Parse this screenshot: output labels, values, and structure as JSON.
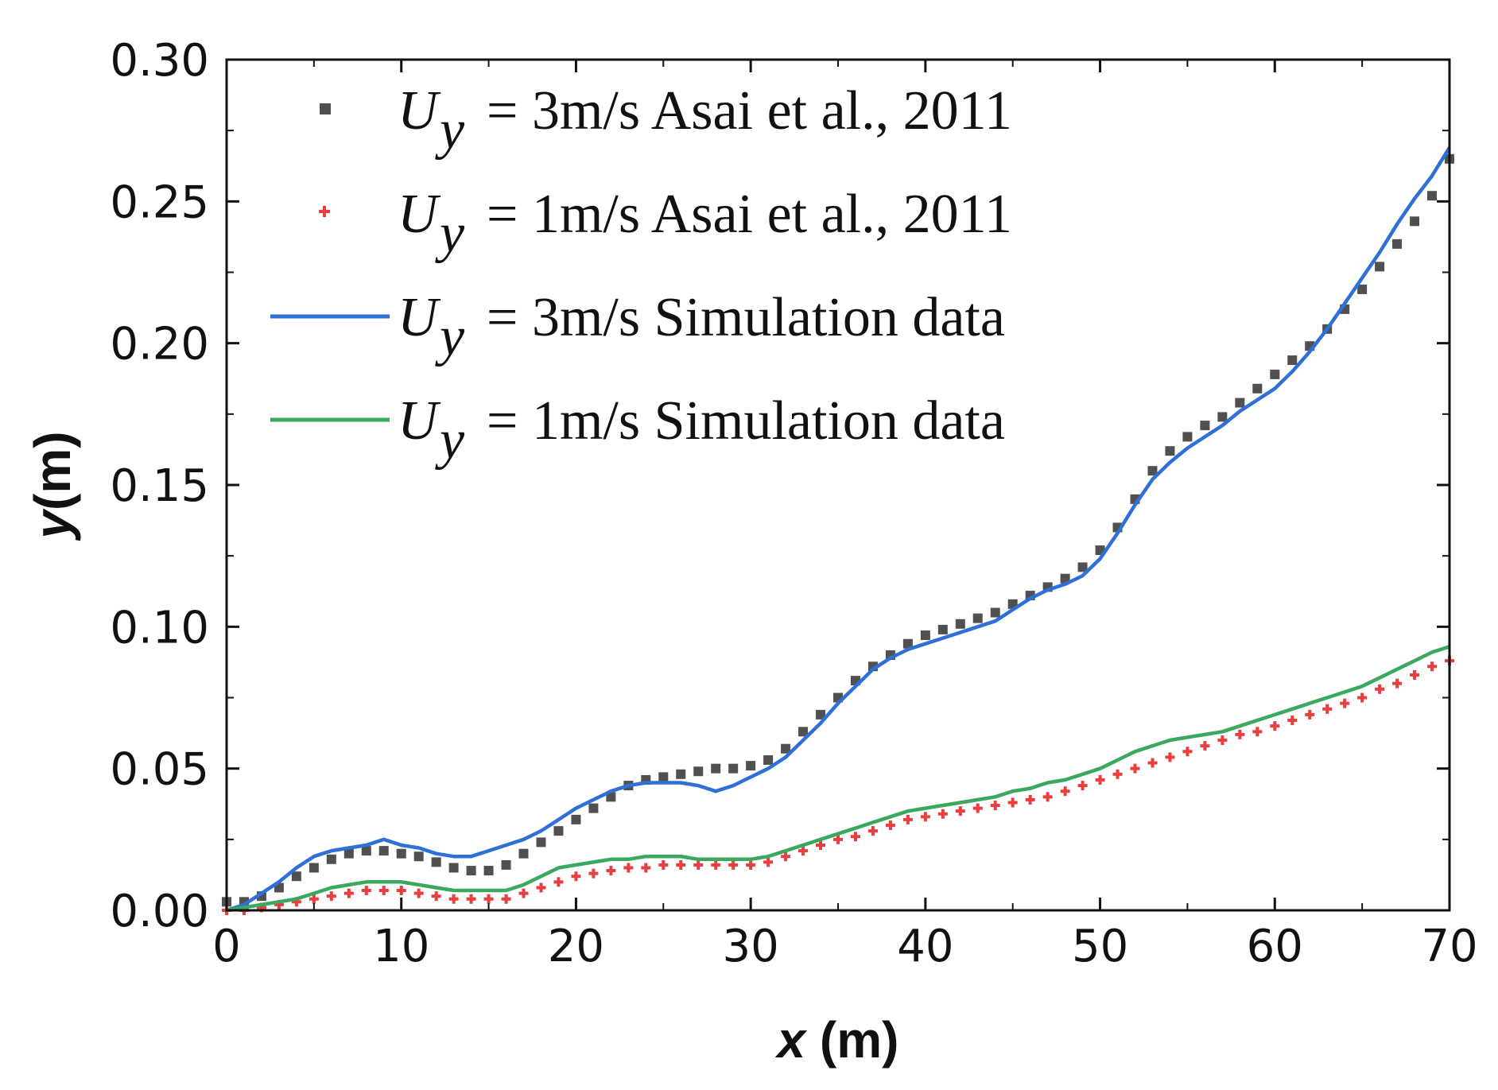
{
  "chart_data": {
    "type": "scatter",
    "title": "",
    "xlabel": "x (m)",
    "xlabel_var": "x",
    "xlabel_unit": " (m)",
    "ylabel": "y (m)",
    "ylabel_var": "y",
    "ylabel_unit": "(m)",
    "xlim": [
      0,
      70
    ],
    "ylim": [
      0,
      0.3
    ],
    "xticks": [
      0,
      10,
      20,
      30,
      40,
      50,
      60,
      70
    ],
    "xtick_labels": [
      "0",
      "10",
      "20",
      "30",
      "40",
      "50",
      "60",
      "70"
    ],
    "yticks": [
      0,
      0.05,
      0.1,
      0.15,
      0.2,
      0.25,
      0.3
    ],
    "ytick_labels": [
      "0.00",
      "0.05",
      "0.10",
      "0.15",
      "0.20",
      "0.25",
      "0.30"
    ],
    "grid": false,
    "legend_position": "top-left",
    "series": [
      {
        "name": "U_y = 3m/s Asai et al., 2011",
        "legend_symbol": "U",
        "legend_sub": "y",
        "legend_text": "= 3m/s  Asai et al., 2011",
        "kind": "markers",
        "marker": "square",
        "color": "#505050",
        "x": [
          0,
          1,
          2,
          3,
          4,
          5,
          6,
          7,
          8,
          9,
          10,
          11,
          12,
          13,
          14,
          15,
          16,
          17,
          18,
          19,
          20,
          21,
          22,
          23,
          24,
          25,
          26,
          27,
          28,
          29,
          30,
          31,
          32,
          33,
          34,
          35,
          36,
          37,
          38,
          39,
          40,
          41,
          42,
          43,
          44,
          45,
          46,
          47,
          48,
          49,
          50,
          51,
          52,
          53,
          54,
          55,
          56,
          57,
          58,
          59,
          60,
          61,
          62,
          63,
          64,
          65,
          66,
          67,
          68,
          69,
          70
        ],
        "y": [
          0.003,
          0.003,
          0.005,
          0.008,
          0.012,
          0.015,
          0.018,
          0.02,
          0.021,
          0.021,
          0.02,
          0.019,
          0.017,
          0.015,
          0.014,
          0.014,
          0.016,
          0.02,
          0.024,
          0.028,
          0.032,
          0.036,
          0.04,
          0.044,
          0.046,
          0.047,
          0.048,
          0.049,
          0.05,
          0.05,
          0.051,
          0.053,
          0.057,
          0.063,
          0.069,
          0.075,
          0.081,
          0.086,
          0.09,
          0.094,
          0.097,
          0.099,
          0.101,
          0.103,
          0.105,
          0.108,
          0.111,
          0.114,
          0.117,
          0.121,
          0.127,
          0.135,
          0.145,
          0.155,
          0.162,
          0.167,
          0.171,
          0.174,
          0.179,
          0.184,
          0.189,
          0.194,
          0.199,
          0.205,
          0.212,
          0.219,
          0.227,
          0.235,
          0.243,
          0.252,
          0.265
        ]
      },
      {
        "name": "U_y = 1m/s Asai et al., 2011",
        "legend_symbol": "U",
        "legend_sub": "y",
        "legend_text": "= 1m/s  Asai et al., 2011",
        "kind": "markers",
        "marker": "plus",
        "color": "#e83e3e",
        "x": [
          0,
          1,
          2,
          3,
          4,
          5,
          6,
          7,
          8,
          9,
          10,
          11,
          12,
          13,
          14,
          15,
          16,
          17,
          18,
          19,
          20,
          21,
          22,
          23,
          24,
          25,
          26,
          27,
          28,
          29,
          30,
          31,
          32,
          33,
          34,
          35,
          36,
          37,
          38,
          39,
          40,
          41,
          42,
          43,
          44,
          45,
          46,
          47,
          48,
          49,
          50,
          51,
          52,
          53,
          54,
          55,
          56,
          57,
          58,
          59,
          60,
          61,
          62,
          63,
          64,
          65,
          66,
          67,
          68,
          69,
          70
        ],
        "y": [
          0.0,
          0.0,
          0.001,
          0.002,
          0.003,
          0.004,
          0.005,
          0.006,
          0.007,
          0.007,
          0.007,
          0.006,
          0.005,
          0.004,
          0.004,
          0.004,
          0.004,
          0.006,
          0.008,
          0.01,
          0.012,
          0.013,
          0.014,
          0.015,
          0.015,
          0.016,
          0.016,
          0.016,
          0.016,
          0.016,
          0.016,
          0.017,
          0.019,
          0.021,
          0.023,
          0.025,
          0.026,
          0.028,
          0.03,
          0.032,
          0.033,
          0.034,
          0.035,
          0.036,
          0.037,
          0.038,
          0.039,
          0.04,
          0.042,
          0.044,
          0.046,
          0.048,
          0.05,
          0.052,
          0.054,
          0.056,
          0.058,
          0.06,
          0.062,
          0.063,
          0.065,
          0.067,
          0.069,
          0.071,
          0.073,
          0.075,
          0.078,
          0.08,
          0.083,
          0.086,
          0.088
        ]
      },
      {
        "name": "U_y = 3m/s Simulation data",
        "legend_symbol": "U",
        "legend_sub": "y",
        "legend_text": "= 3m/s  Simulation data",
        "kind": "line",
        "color": "#2e6fd8",
        "x": [
          0,
          1,
          2,
          3,
          4,
          5,
          6,
          7,
          8,
          9,
          10,
          11,
          12,
          13,
          14,
          15,
          16,
          17,
          18,
          19,
          20,
          21,
          22,
          23,
          24,
          25,
          26,
          27,
          28,
          29,
          30,
          31,
          32,
          33,
          34,
          35,
          36,
          37,
          38,
          39,
          40,
          41,
          42,
          43,
          44,
          45,
          46,
          47,
          48,
          49,
          50,
          51,
          52,
          53,
          54,
          55,
          56,
          57,
          58,
          59,
          60,
          61,
          62,
          63,
          64,
          65,
          66,
          67,
          68,
          69,
          70
        ],
        "y": [
          0.0,
          0.002,
          0.006,
          0.01,
          0.015,
          0.019,
          0.021,
          0.022,
          0.023,
          0.025,
          0.023,
          0.022,
          0.02,
          0.019,
          0.019,
          0.021,
          0.023,
          0.025,
          0.028,
          0.032,
          0.036,
          0.039,
          0.042,
          0.044,
          0.045,
          0.045,
          0.045,
          0.044,
          0.042,
          0.044,
          0.047,
          0.05,
          0.054,
          0.06,
          0.066,
          0.073,
          0.079,
          0.085,
          0.089,
          0.092,
          0.094,
          0.096,
          0.098,
          0.1,
          0.102,
          0.106,
          0.11,
          0.113,
          0.115,
          0.118,
          0.124,
          0.133,
          0.143,
          0.152,
          0.158,
          0.163,
          0.167,
          0.171,
          0.176,
          0.18,
          0.184,
          0.19,
          0.197,
          0.205,
          0.214,
          0.223,
          0.232,
          0.242,
          0.251,
          0.259,
          0.269
        ]
      },
      {
        "name": "U_y = 1m/s Simulation data",
        "legend_symbol": "U",
        "legend_sub": "y",
        "legend_text": "= 1m/s  Simulation data",
        "kind": "line",
        "color": "#3aa85e",
        "x": [
          0,
          1,
          2,
          3,
          4,
          5,
          6,
          7,
          8,
          9,
          10,
          11,
          12,
          13,
          14,
          15,
          16,
          17,
          18,
          19,
          20,
          21,
          22,
          23,
          24,
          25,
          26,
          27,
          28,
          29,
          30,
          31,
          32,
          33,
          34,
          35,
          36,
          37,
          38,
          39,
          40,
          41,
          42,
          43,
          44,
          45,
          46,
          47,
          48,
          49,
          50,
          51,
          52,
          53,
          54,
          55,
          56,
          57,
          58,
          59,
          60,
          61,
          62,
          63,
          64,
          65,
          66,
          67,
          68,
          69,
          70
        ],
        "y": [
          0.0,
          0.001,
          0.002,
          0.003,
          0.004,
          0.006,
          0.008,
          0.009,
          0.01,
          0.01,
          0.01,
          0.009,
          0.008,
          0.007,
          0.007,
          0.007,
          0.007,
          0.009,
          0.012,
          0.015,
          0.016,
          0.017,
          0.018,
          0.018,
          0.019,
          0.019,
          0.019,
          0.018,
          0.018,
          0.018,
          0.018,
          0.019,
          0.021,
          0.023,
          0.025,
          0.027,
          0.029,
          0.031,
          0.033,
          0.035,
          0.036,
          0.037,
          0.038,
          0.039,
          0.04,
          0.042,
          0.043,
          0.045,
          0.046,
          0.048,
          0.05,
          0.053,
          0.056,
          0.058,
          0.06,
          0.061,
          0.062,
          0.063,
          0.065,
          0.067,
          0.069,
          0.071,
          0.073,
          0.075,
          0.077,
          0.079,
          0.082,
          0.085,
          0.088,
          0.091,
          0.093
        ]
      }
    ]
  }
}
